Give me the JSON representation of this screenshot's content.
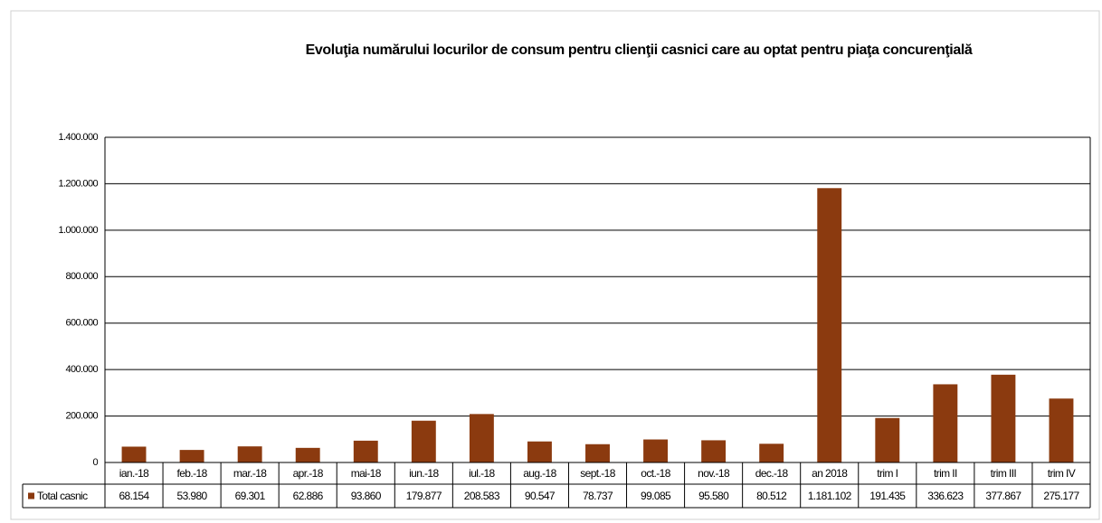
{
  "chart_data": {
    "type": "bar",
    "title": "Evoluţia numărului locurilor de consum pentru clienţii casnici care au optat pentru piaţa concurenţială",
    "categories": [
      "ian.-18",
      "feb.-18",
      "mar.-18",
      "apr.-18",
      "mai-18",
      "iun.-18",
      "iul.-18",
      "aug.-18",
      "sept.-18",
      "oct.-18",
      "nov.-18",
      "dec.-18",
      "an 2018",
      "trim I",
      "trim II",
      "trim III",
      "trim IV"
    ],
    "series": [
      {
        "name": "Total casnic",
        "color": "#8b3a0f",
        "values": [
          68154,
          53980,
          69301,
          62886,
          93860,
          179877,
          208583,
          90547,
          78737,
          99085,
          95580,
          80512,
          1181102,
          191435,
          336623,
          377867,
          275177
        ],
        "value_labels": [
          "68.154",
          "53.980",
          "69.301",
          "62.886",
          "93.860",
          "179.877",
          "208.583",
          "90.547",
          "78.737",
          "99.085",
          "95.580",
          "80.512",
          "1.181.102",
          "191.435",
          "336.623",
          "377.867",
          "275.177"
        ]
      }
    ],
    "ylim": [
      0,
      1400000
    ],
    "yticks": [
      0,
      {
        "value": 200000,
        "label": "200.000"
      },
      {
        "value": 400000,
        "label": "400.000"
      },
      {
        "value": 600000,
        "label": "600.000"
      },
      {
        "value": 800000,
        "label": "800.000"
      },
      {
        "value": 1000000,
        "label": "1.000.000"
      },
      {
        "value": 1200000,
        "label": "1.200.000"
      },
      {
        "value": 1400000,
        "label": "1.400.000"
      }
    ],
    "grid": true
  }
}
